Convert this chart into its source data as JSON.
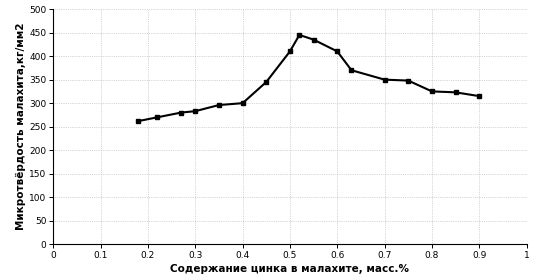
{
  "x": [
    0.18,
    0.22,
    0.27,
    0.3,
    0.35,
    0.4,
    0.45,
    0.5,
    0.52,
    0.55,
    0.6,
    0.63,
    0.7,
    0.75,
    0.8,
    0.85,
    0.9
  ],
  "y": [
    262,
    270,
    280,
    283,
    296,
    300,
    345,
    410,
    445,
    435,
    410,
    370,
    350,
    348,
    325,
    323,
    315
  ],
  "xlabel": "Содержание цинка в малахите, масс.%",
  "ylabel": "Микротвёрдость малахита,кг/мм2",
  "xlim": [
    0,
    1
  ],
  "ylim": [
    0,
    500
  ],
  "xticks": [
    0,
    0.1,
    0.2,
    0.3,
    0.4,
    0.5,
    0.6,
    0.7,
    0.8,
    0.9,
    1.0
  ],
  "yticks": [
    0,
    50,
    100,
    150,
    200,
    250,
    300,
    350,
    400,
    450,
    500
  ],
  "line_color": "#000000",
  "marker": "s",
  "marker_size": 3.0,
  "line_width": 1.5,
  "grid_color": "#b0b0b0",
  "background_color": "#ffffff",
  "font_size_labels": 7.5,
  "font_size_ticks": 6.5
}
